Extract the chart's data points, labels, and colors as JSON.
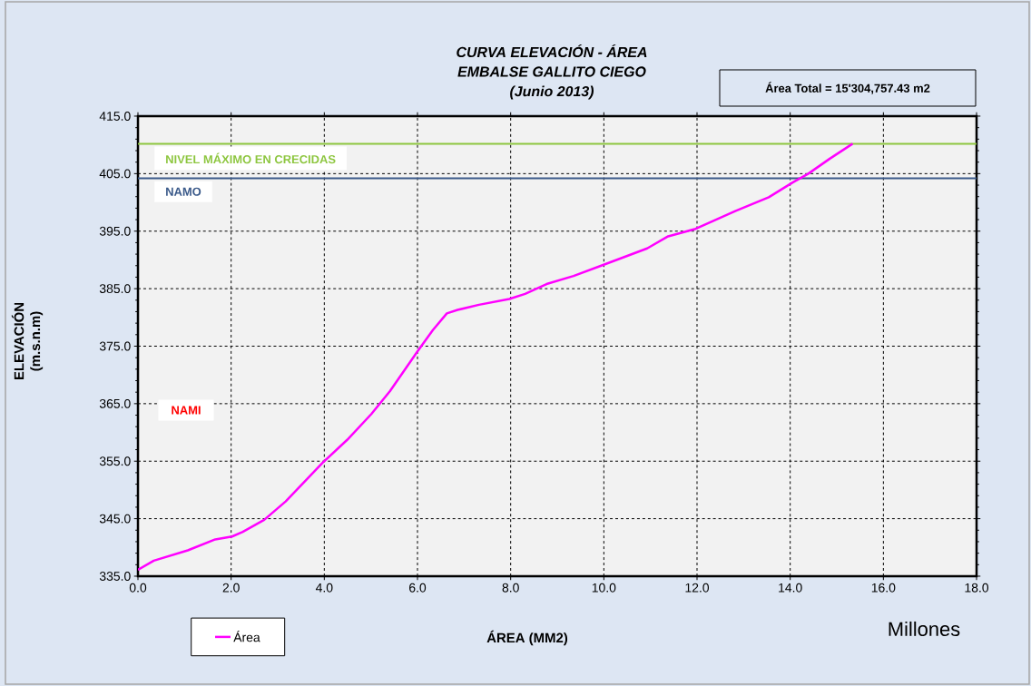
{
  "chart_data": {
    "type": "line",
    "title": "CURVA ELEVACIÓN - ÁREA",
    "subtitle": "EMBALSE  GALLITO CIEGO",
    "xlabel": "ÁREA (MM2)",
    "ylabel": "ELEVACIÓN (m.s.n.m)",
    "xlim": [
      0,
      18
    ],
    "ylim": [
      335,
      415
    ],
    "xticks": [
      {
        "value": 0,
        "label": "0.0"
      },
      {
        "value": 2,
        "label": "2.0"
      },
      {
        "value": 4,
        "label": "4.0"
      },
      {
        "value": 6,
        "label": "6.0"
      },
      {
        "value": 8,
        "label": "8.0"
      },
      {
        "value": 10,
        "label": "10.0"
      },
      {
        "value": 12,
        "label": "12.0"
      },
      {
        "value": 14,
        "label": "14.0"
      },
      {
        "value": 16,
        "label": "16.0"
      },
      {
        "value": 18,
        "label": "18.0"
      }
    ],
    "yticks": [
      {
        "value": 335,
        "label": "335.0"
      },
      {
        "value": 345,
        "label": "345.0"
      },
      {
        "value": 355,
        "label": "355.0"
      },
      {
        "value": 365,
        "label": "365.0"
      },
      {
        "value": 375,
        "label": "375.0"
      },
      {
        "value": 385,
        "label": "385.0"
      },
      {
        "value": 395,
        "label": "395.0"
      },
      {
        "value": 405,
        "label": "405.0"
      },
      {
        "value": 415,
        "label": "415.0"
      }
    ],
    "grid": true,
    "legend": "bottom left",
    "series": [
      {
        "name": "Área",
        "color": "#ff00ff",
        "x": [
          0,
          0.34,
          1.07,
          1.66,
          2.02,
          2.25,
          2.71,
          3.17,
          3.96,
          4.49,
          5.01,
          5.41,
          6.0,
          6.33,
          6.63,
          6.86,
          7.32,
          7.97,
          8.31,
          8.77,
          9.35,
          10.01,
          10.93,
          11.38,
          11.97,
          12.82,
          13.54,
          14.06,
          14.39,
          14.85,
          15.34
        ],
        "values": [
          336.1,
          337.7,
          339.5,
          341.4,
          341.9,
          342.7,
          344.8,
          348.0,
          354.7,
          358.7,
          363.2,
          367.2,
          374.1,
          377.8,
          380.7,
          381.3,
          382.2,
          383.2,
          384.1,
          385.8,
          387.2,
          389.2,
          392.0,
          394.1,
          395.4,
          398.5,
          400.9,
          403.5,
          405.0,
          407.6,
          410.2
        ]
      }
    ],
    "ref_lines": [
      {
        "axis": "y",
        "value": 410.2,
        "label": "NIVEL MÁXIMO EN CRECIDAS",
        "color": "#8dc63f"
      },
      {
        "axis": "y",
        "value": 404.2,
        "label": "NAMO",
        "color": "#3b5a8a"
      }
    ],
    "annotations": [
      "(Junio 2013)",
      "Área Total = 15'304,757.43 m2",
      "Millones",
      "NAMI"
    ]
  }
}
